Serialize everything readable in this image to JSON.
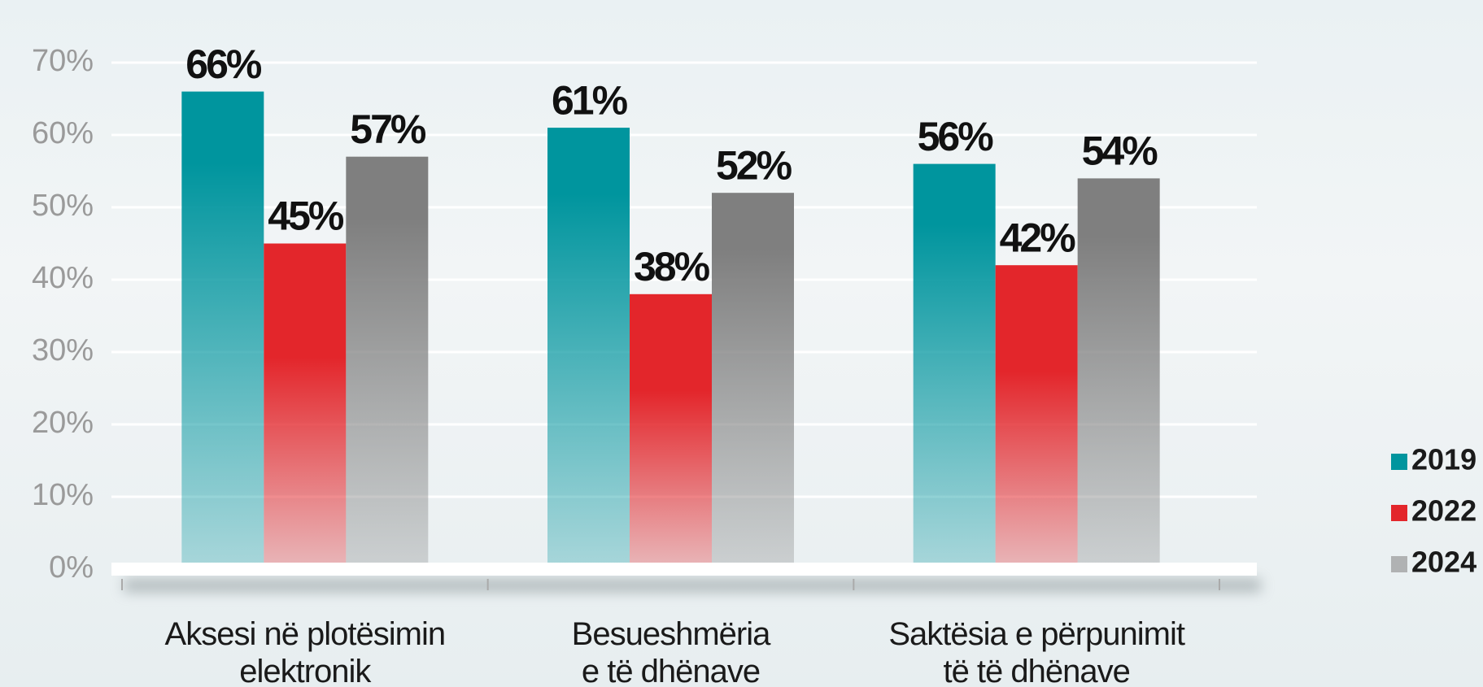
{
  "chart_data": {
    "type": "bar",
    "categories": [
      "Aksesi në plotësimin\nelektronik",
      "Besueshmëria\ne të dhënave",
      "Saktësia e përpunimit\ntë të dhënave"
    ],
    "series": [
      {
        "name": "2019",
        "color": "#00959e",
        "values": [
          66,
          61,
          56
        ],
        "value_labels": [
          "66%",
          "61%",
          "56%"
        ]
      },
      {
        "name": "2022",
        "color": "#e3262b",
        "values": [
          45,
          38,
          42
        ],
        "value_labels": [
          "45%",
          "38%",
          "42%"
        ]
      },
      {
        "name": "2024",
        "color": "#7f7f7f",
        "values": [
          57,
          52,
          54
        ],
        "value_labels": [
          "57%",
          "52%",
          "54%"
        ]
      }
    ],
    "ylim": [
      0,
      70
    ],
    "yticks": [
      {
        "value": 0,
        "label": "0%"
      },
      {
        "value": 10,
        "label": "10%"
      },
      {
        "value": 20,
        "label": "20%"
      },
      {
        "value": 30,
        "label": "30%"
      },
      {
        "value": 40,
        "label": "40%"
      },
      {
        "value": 50,
        "label": "50%"
      },
      {
        "value": 60,
        "label": "60%"
      },
      {
        "value": 70,
        "label": "70%"
      }
    ],
    "grid": true,
    "legend": "right"
  }
}
